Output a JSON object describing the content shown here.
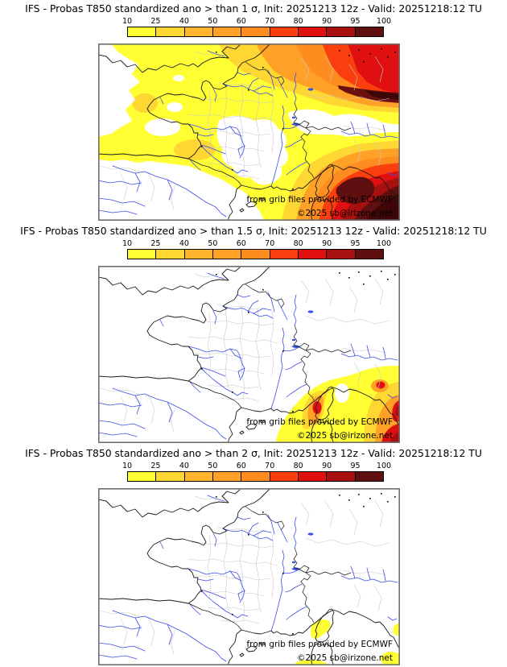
{
  "panels": [
    {
      "threshold_sigma": "1",
      "title": "IFS - Probas T850  standardized ano > than 1 σ, Init: 20251213 12z - Valid: 20251218:12 TU"
    },
    {
      "threshold_sigma": "1.5",
      "title": "IFS - Probas T850  standardized ano > than 1.5 σ, Init: 20251213 12z - Valid: 20251218:12 TU"
    },
    {
      "threshold_sigma": "2",
      "title": "IFS - Probas T850  standardized ano > than 2 σ, Init: 20251213 12z - Valid: 20251218:12 TU"
    }
  ],
  "colorbar": {
    "tick_labels": [
      "10",
      "25",
      "40",
      "50",
      "60",
      "70",
      "80",
      "90",
      "95",
      "100"
    ],
    "segment_colors": [
      "#FFFF33",
      "#FFD733",
      "#FFB52E",
      "#FFA126",
      "#FF8C1F",
      "#FA3E0E",
      "#E01010",
      "#A81010",
      "#5E0F0F"
    ],
    "extra_shades": {
      "near_black": "#3D0707",
      "maroon_streak": "#6B0F0F"
    }
  },
  "map": {
    "attribution_line1": "from grib files provided by ECMWF",
    "attribution_line2": "©2025 sb@irizone.net",
    "colors": {
      "sea": "#FFFFFF",
      "coastline": "#1A1A1A",
      "rivers": "#3C50E6",
      "admin_borders": "#C8C8C8",
      "frame": "#6E6E6E"
    }
  }
}
